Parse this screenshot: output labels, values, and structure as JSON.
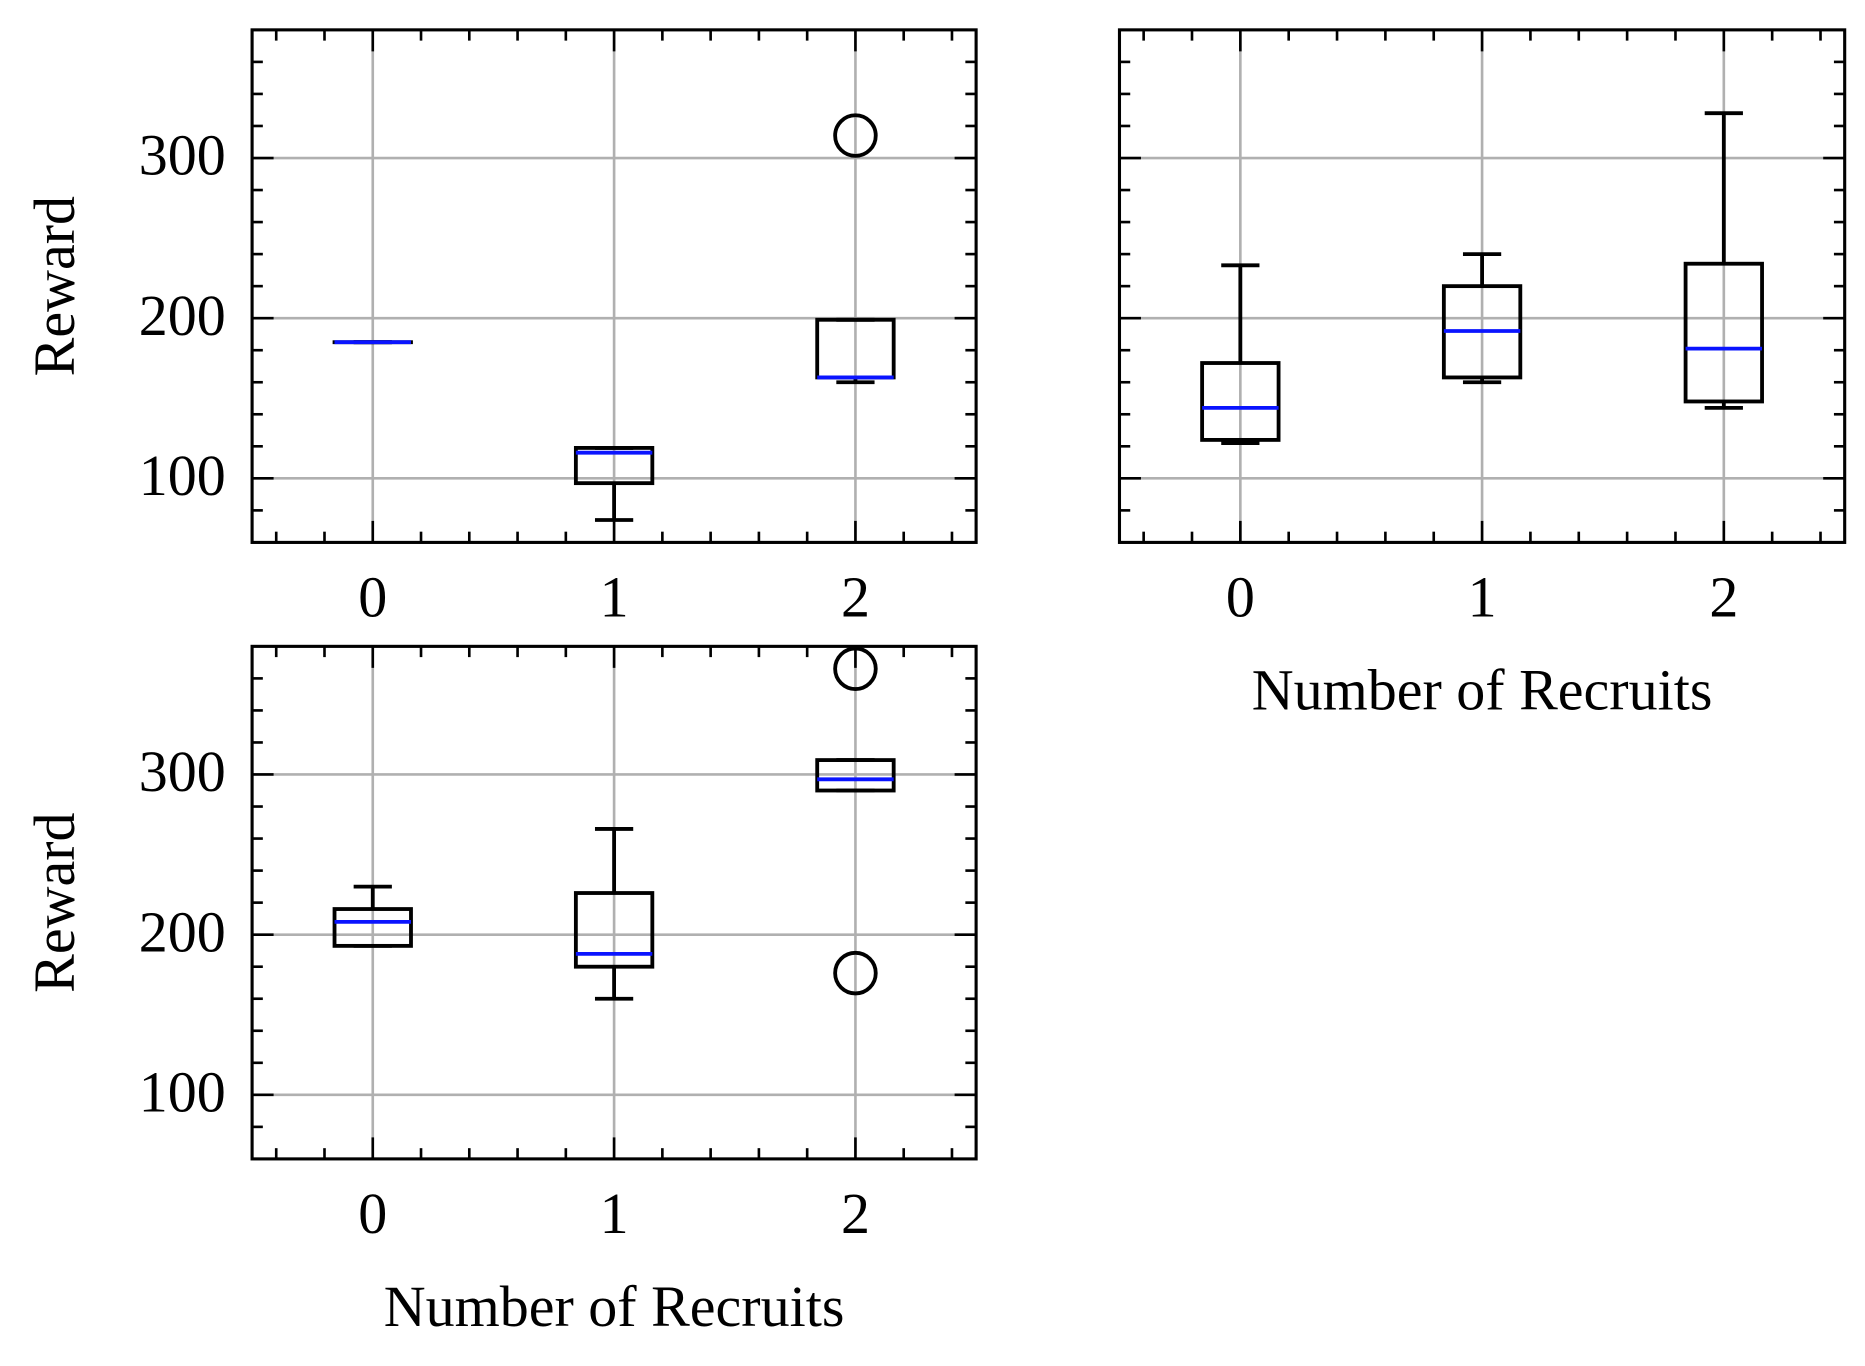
{
  "chart_data": [
    {
      "type": "box",
      "panel": "top-left",
      "xlabel": "",
      "ylabel": "Reward",
      "categories": [
        "0",
        "1",
        "2"
      ],
      "yticks": [
        100,
        200,
        300
      ],
      "ylim": [
        60,
        380
      ],
      "xlim": [
        -0.5,
        2.5
      ],
      "grid": true,
      "boxes": [
        {
          "x": 0,
          "whislo": 185,
          "q1": 185,
          "med": 185,
          "q3": 185,
          "whishi": 185,
          "fliers": []
        },
        {
          "x": 1,
          "whislo": 74,
          "q1": 97,
          "med": 116,
          "q3": 119,
          "whishi": 119,
          "fliers": []
        },
        {
          "x": 2,
          "whislo": 160,
          "q1": 163,
          "med": 163,
          "q3": 199,
          "whishi": 199,
          "fliers": [
            314
          ]
        }
      ]
    },
    {
      "type": "box",
      "panel": "top-right",
      "xlabel": "Number of Recruits",
      "ylabel": "",
      "categories": [
        "0",
        "1",
        "2"
      ],
      "yticks": [
        100,
        200,
        300
      ],
      "show_ytick_labels": false,
      "ylim": [
        60,
        380
      ],
      "xlim": [
        -0.5,
        2.5
      ],
      "grid": true,
      "boxes": [
        {
          "x": 0,
          "whislo": 122,
          "q1": 124,
          "med": 144,
          "q3": 172,
          "whishi": 233,
          "fliers": []
        },
        {
          "x": 1,
          "whislo": 160,
          "q1": 163,
          "med": 192,
          "q3": 220,
          "whishi": 240,
          "fliers": []
        },
        {
          "x": 2,
          "whislo": 144,
          "q1": 148,
          "med": 181,
          "q3": 234,
          "whishi": 328,
          "fliers": []
        }
      ]
    },
    {
      "type": "box",
      "panel": "bottom-left",
      "xlabel": "Number of Recruits",
      "ylabel": "Reward",
      "categories": [
        "0",
        "1",
        "2"
      ],
      "yticks": [
        100,
        200,
        300
      ],
      "ylim": [
        60,
        380
      ],
      "xlim": [
        -0.5,
        2.5
      ],
      "grid": true,
      "boxes": [
        {
          "x": 0,
          "whislo": 193,
          "q1": 193,
          "med": 208,
          "q3": 216,
          "whishi": 230,
          "fliers": []
        },
        {
          "x": 1,
          "whislo": 160,
          "q1": 180,
          "med": 188,
          "q3": 226,
          "whishi": 266,
          "fliers": []
        },
        {
          "x": 2,
          "whislo": 290,
          "q1": 290,
          "med": 297,
          "q3": 309,
          "whishi": 309,
          "fliers": [
            366,
            176
          ]
        }
      ]
    }
  ],
  "colors": {
    "box": "#000000",
    "median": "#0a14ff",
    "grid": "#b0b0b0",
    "axes": "#000000"
  }
}
